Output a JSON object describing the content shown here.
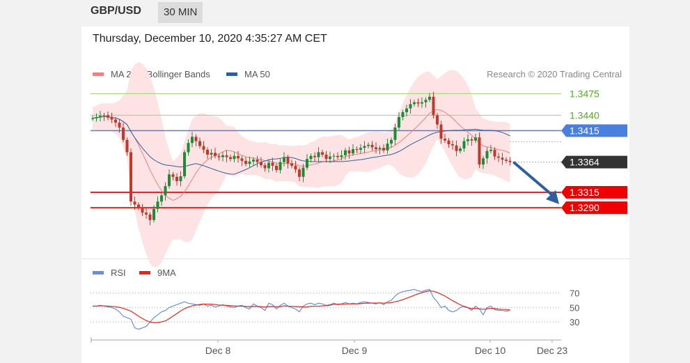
{
  "header": {
    "pair": "GBP/USD",
    "timeframe": "30 MIN"
  },
  "timestamp": "Thursday, December 10, 2020 4:35:27 AM CET",
  "legend": {
    "ma20": {
      "label": "MA 20 + Bollinger Bands",
      "color": "#f08080"
    },
    "ma50": {
      "label": "MA 50",
      "color": "#2d5f9e"
    },
    "rsi": {
      "label": "RSI",
      "color": "#6a8fd8"
    },
    "rsi_ma": {
      "label": "9MA",
      "color": "#e8241c"
    }
  },
  "credit": "Research © 2020 Trading Central",
  "colors": {
    "up": "#1e8a3a",
    "down": "#c0392b",
    "resistance": "#9fd07a",
    "pivot": "#4a7fe0",
    "support": "#e8241c",
    "arrow": "#2d5f9e",
    "band": "#fde3e3"
  },
  "chart_data": {
    "type": "candlestick",
    "price_range": [
      1.322,
      1.348
    ],
    "levels": [
      {
        "value": "1.3475",
        "kind": "resistance"
      },
      {
        "value": "1.3440",
        "kind": "resistance"
      },
      {
        "value": "1.3415",
        "kind": "pivot"
      },
      {
        "value": "1.3364",
        "kind": "last"
      },
      {
        "value": "1.3315",
        "kind": "support"
      },
      {
        "value": "1.3290",
        "kind": "support"
      }
    ],
    "x_ticks": [
      "Dec 8",
      "Dec 9",
      "Dec 10",
      "Dec 23"
    ],
    "rsi_ticks": [
      "70",
      "50",
      "30"
    ],
    "rsi_range": [
      10,
      85
    ],
    "close": [
      1.3435,
      1.3437,
      1.3439,
      1.344,
      1.3436,
      1.3433,
      1.3428,
      1.342,
      1.34,
      1.338,
      1.33,
      1.3295,
      1.329,
      1.3282,
      1.3279,
      1.327,
      1.3288,
      1.33,
      1.331,
      1.3325,
      1.3344,
      1.334,
      1.3333,
      1.3341,
      1.338,
      1.3395,
      1.3405,
      1.3398,
      1.339,
      1.3384,
      1.3376,
      1.3379,
      1.3374,
      1.3372,
      1.3375,
      1.3372,
      1.3369,
      1.3374,
      1.337,
      1.3366,
      1.3361,
      1.3365,
      1.3368,
      1.3364,
      1.3359,
      1.3354,
      1.3363,
      1.3358,
      1.3351,
      1.3364,
      1.3372,
      1.3362,
      1.3358,
      1.3352,
      1.334,
      1.3355,
      1.3369,
      1.3374,
      1.3372,
      1.338,
      1.3376,
      1.3369,
      1.3373,
      1.3374,
      1.3372,
      1.3375,
      1.3383,
      1.3378,
      1.3385,
      1.3384,
      1.3387,
      1.339,
      1.3392,
      1.3388,
      1.3385,
      1.3387,
      1.3383,
      1.3394,
      1.34,
      1.342,
      1.3437,
      1.3445,
      1.3451,
      1.3458,
      1.3461,
      1.3459,
      1.3461,
      1.3465,
      1.347,
      1.344,
      1.3425,
      1.3402,
      1.3399,
      1.3393,
      1.3391,
      1.3382,
      1.3386,
      1.3398,
      1.3401,
      1.3399,
      1.3404,
      1.336,
      1.337,
      1.3382,
      1.3384,
      1.3373,
      1.3371,
      1.3368,
      1.3366,
      1.3364
    ],
    "rsi": [
      52,
      52,
      53,
      52,
      51,
      50,
      48,
      44,
      38,
      36,
      34,
      22,
      20,
      22,
      24,
      30,
      36,
      40,
      44,
      46,
      50,
      52,
      54,
      56,
      58,
      56,
      55,
      54,
      53,
      55,
      52,
      53,
      51,
      52,
      54,
      52,
      51,
      50,
      52,
      53,
      50,
      48,
      55,
      52,
      50,
      46,
      56,
      54,
      48,
      53,
      56,
      52,
      50,
      48,
      44,
      52,
      55,
      56,
      54,
      56,
      55,
      53,
      54,
      56,
      54,
      55,
      57,
      55,
      56,
      55,
      57,
      58,
      57,
      56,
      55,
      57,
      54,
      58,
      60,
      66,
      70,
      72,
      73,
      74,
      75,
      73,
      72,
      74,
      75,
      64,
      58,
      50,
      52,
      46,
      44,
      46,
      50,
      52,
      50,
      46,
      52,
      48,
      40,
      50,
      52,
      47,
      46,
      46,
      45,
      46
    ]
  }
}
